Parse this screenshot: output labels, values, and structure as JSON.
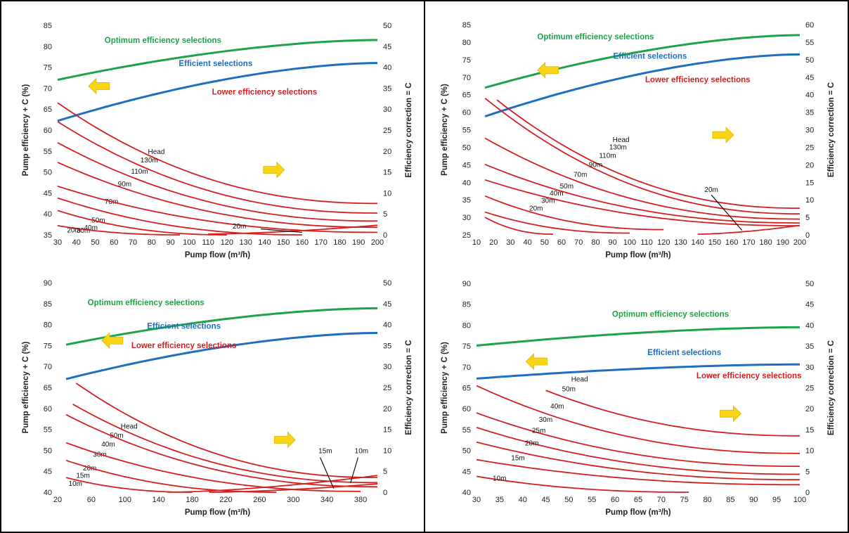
{
  "colors": {
    "optimum": "#1fa34a",
    "efficient": "#1f6fc0",
    "lower": "#d42020",
    "arrow": "#f7d414",
    "text": "#222222"
  },
  "chart_data": [
    {
      "type": "line",
      "panel": "top-left",
      "xlabel": "Pump flow (m³/h)",
      "ylabel": "Pump efficiency + C (%)",
      "y2label": "Efficiency correction = C",
      "xlim": [
        30,
        200
      ],
      "xticks": [
        30,
        40,
        50,
        60,
        70,
        80,
        90,
        100,
        110,
        120,
        130,
        140,
        150,
        160,
        170,
        180,
        190,
        200
      ],
      "ylim": [
        35,
        85
      ],
      "yticks": [
        35,
        40,
        45,
        50,
        55,
        60,
        65,
        70,
        75,
        80,
        85
      ],
      "y2lim": [
        0,
        50
      ],
      "y2ticks": [
        0,
        5,
        10,
        15,
        20,
        25,
        30,
        35,
        40,
        45,
        50
      ],
      "region_labels": {
        "optimum": {
          "text": "Optimum efficiency selections",
          "x": 86,
          "y": 80.8
        },
        "efficient": {
          "text": "Efficient selections",
          "x": 114,
          "y": 75.3
        },
        "lower": {
          "text": "Lower efficiency selections",
          "x": 140,
          "y": 68.5
        }
      },
      "boundaries": {
        "optimum": {
          "x": [
            30,
            200
          ],
          "y": [
            72,
            81.5
          ]
        },
        "efficient": {
          "x": [
            30,
            200
          ],
          "y": [
            62.2,
            76
          ]
        }
      },
      "heads_title": {
        "text": "Head",
        "x": 78,
        "y": 54.3
      },
      "heads": [
        {
          "name": "130m",
          "x": [
            30,
            200
          ],
          "y": [
            66.5,
            42.5
          ],
          "label_x": 74,
          "label_y": 52.3
        },
        {
          "name": "110m",
          "x": [
            30,
            200
          ],
          "y": [
            62,
            40.2
          ],
          "label_x": 69,
          "label_y": 49.6
        },
        {
          "name": "90m",
          "x": [
            30,
            200
          ],
          "y": [
            57,
            38.3
          ],
          "label_x": 62,
          "label_y": 46.6
        },
        {
          "name": "70m",
          "x": [
            30,
            200
          ],
          "y": [
            52.3,
            36.8
          ],
          "label_x": 55,
          "label_y": 42.4
        },
        {
          "name": "50m",
          "x": [
            30,
            200
          ],
          "y": [
            46.6,
            35.6
          ],
          "label_x": 48,
          "label_y": 37.9
        },
        {
          "name": "40m",
          "x": [
            30,
            160
          ],
          "y": [
            43.8,
            35
          ],
          "label_x": 44,
          "label_y": 36.2
        },
        {
          "name": "30m",
          "x": [
            30,
            120
          ],
          "y": [
            40.8,
            35
          ],
          "label_x": 40,
          "label_y": 35.5
        },
        {
          "name": "20m",
          "x": [
            30,
            95
          ],
          "y": [
            37.2,
            35
          ],
          "label_x": 35,
          "label_y": 35.6
        },
        {
          "name": "20m",
          "x": [
            110,
            200
          ],
          "y": [
            35.2,
            37.3
          ],
          "label_x": 123,
          "label_y": 36.5
        }
      ]
    },
    {
      "type": "line",
      "panel": "top-right",
      "xlabel": "Pump flow (m³/h)",
      "ylabel": "Pump efficiency + C (%)",
      "y2label": "Efficiency correction = C",
      "xlim": [
        10,
        200
      ],
      "xticks": [
        10,
        20,
        30,
        40,
        50,
        60,
        70,
        80,
        90,
        100,
        110,
        120,
        130,
        140,
        150,
        160,
        170,
        180,
        190,
        200
      ],
      "ylim": [
        25,
        85
      ],
      "yticks": [
        25,
        30,
        35,
        40,
        45,
        50,
        55,
        60,
        65,
        70,
        75,
        80,
        85
      ],
      "y2lim": [
        0,
        60
      ],
      "y2ticks": [
        0,
        5,
        10,
        15,
        20,
        25,
        30,
        35,
        40,
        45,
        50,
        55,
        60
      ],
      "region_labels": {
        "optimum": {
          "text": "Optimum efficiency selections",
          "x": 80,
          "y": 80.8
        },
        "efficient": {
          "text": "Efficient selections",
          "x": 112,
          "y": 75.3
        },
        "lower": {
          "text": "Lower efficiency selections",
          "x": 140,
          "y": 68.5
        }
      },
      "boundaries": {
        "optimum": {
          "x": [
            15,
            200
          ],
          "y": [
            67,
            82
          ]
        },
        "efficient": {
          "x": [
            15,
            200
          ],
          "y": [
            58.8,
            76.5
          ]
        }
      },
      "heads_title": {
        "text": "Head",
        "x": 90,
        "y": 51.5
      },
      "heads": [
        {
          "name": "130m",
          "x": [
            22,
            200
          ],
          "y": [
            63.5,
            32.6
          ],
          "label_x": 88,
          "label_y": 49.4
        },
        {
          "name": "110m",
          "x": [
            15,
            200
          ],
          "y": [
            64,
            31
          ],
          "label_x": 82,
          "label_y": 47
        },
        {
          "name": "90m",
          "x": [
            15,
            200
          ],
          "y": [
            52.6,
            29.5
          ],
          "label_x": 76,
          "label_y": 44.4
        },
        {
          "name": "70m",
          "x": [
            15,
            200
          ],
          "y": [
            45.1,
            28.4
          ],
          "label_x": 67,
          "label_y": 41.6
        },
        {
          "name": "50m",
          "x": [
            15,
            200
          ],
          "y": [
            40.7,
            27.6
          ],
          "label_x": 59,
          "label_y": 38.2
        },
        {
          "name": "40m",
          "x": [
            15,
            120
          ],
          "y": [
            36.1,
            26.5
          ],
          "label_x": 53,
          "label_y": 36.2
        },
        {
          "name": "30m",
          "x": [
            15,
            100
          ],
          "y": [
            31.5,
            25.5
          ],
          "label_x": 48,
          "label_y": 34.1
        },
        {
          "name": "20m",
          "x": [
            15,
            55
          ],
          "y": [
            30,
            25.2
          ],
          "label_x": 41,
          "label_y": 31.9
        },
        {
          "name": "20m",
          "x": [
            140,
            200
          ],
          "y": [
            25.2,
            27.7
          ],
          "label_x": 144,
          "label_y": 37.2
        }
      ]
    },
    {
      "type": "line",
      "panel": "bottom-left",
      "xlabel": "Pump flow (m³/h)",
      "ylabel": "Pump efficiency + C (%)",
      "y2label": "Efficiency correction = C",
      "xlim": [
        20,
        400
      ],
      "xticks": [
        20,
        60,
        100,
        140,
        180,
        220,
        260,
        300,
        340,
        380
      ],
      "ylim": [
        40,
        90
      ],
      "yticks": [
        40,
        45,
        50,
        55,
        60,
        65,
        70,
        75,
        80,
        85,
        90
      ],
      "y2lim": [
        0,
        50
      ],
      "y2ticks": [
        0,
        5,
        10,
        15,
        20,
        25,
        30,
        35,
        40,
        45,
        50
      ],
      "region_labels": {
        "optimum": {
          "text": "Optimum efficiency selections",
          "x": 125,
          "y": 84.6
        },
        "efficient": {
          "text": "Efficient selections",
          "x": 170,
          "y": 79
        },
        "lower": {
          "text": "Lower efficiency selections",
          "x": 170,
          "y": 74.4
        }
      },
      "boundaries": {
        "optimum": {
          "x": [
            30,
            400
          ],
          "y": [
            75.2,
            83.9
          ]
        },
        "efficient": {
          "x": [
            30,
            400
          ],
          "y": [
            67,
            78
          ]
        }
      },
      "heads_title": {
        "text": "Head",
        "x": 95,
        "y": 55.2
      },
      "heads": [
        {
          "name": "50m",
          "x": [
            42,
            400
          ],
          "y": [
            66,
            43.5
          ],
          "label_x": 82,
          "label_y": 53
        },
        {
          "name": "40m",
          "x": [
            38,
            400
          ],
          "y": [
            61,
            42.3
          ],
          "label_x": 72,
          "label_y": 50.9
        },
        {
          "name": "30m",
          "x": [
            30,
            400
          ],
          "y": [
            58.5,
            41.3
          ],
          "label_x": 62,
          "label_y": 48.5
        },
        {
          "name": "20m",
          "x": [
            30,
            380
          ],
          "y": [
            51.8,
            40.2
          ],
          "label_x": 50,
          "label_y": 45.2
        },
        {
          "name": "15m",
          "x": [
            30,
            280
          ],
          "y": [
            47.6,
            40
          ],
          "label_x": 42,
          "label_y": 43.4
        },
        {
          "name": "10m",
          "x": [
            30,
            180
          ],
          "y": [
            43.5,
            40
          ],
          "label_x": 33,
          "label_y": 41.5
        },
        {
          "name": "15m",
          "x": [
            150,
            400
          ],
          "y": [
            40,
            44
          ],
          "label_x": 330,
          "label_y": 49.3
        },
        {
          "name": "10m",
          "x": [
            200,
            400
          ],
          "y": [
            40,
            42
          ],
          "label_x": 373,
          "label_y": 49.3
        }
      ]
    },
    {
      "type": "line",
      "panel": "bottom-right",
      "xlabel": "Pump flow (m³/h)",
      "ylabel": "Pump efficiency + C (%)",
      "y2label": "Efficiency correction = C",
      "xlim": [
        30,
        100
      ],
      "xticks": [
        30,
        35,
        40,
        45,
        50,
        55,
        60,
        65,
        70,
        75,
        80,
        85,
        90,
        95,
        100
      ],
      "ylim": [
        40,
        90
      ],
      "yticks": [
        40,
        45,
        50,
        55,
        60,
        65,
        70,
        75,
        80,
        85,
        90
      ],
      "y2lim": [
        0,
        50
      ],
      "y2ticks": [
        0,
        5,
        10,
        15,
        20,
        25,
        30,
        35,
        40,
        45,
        50
      ],
      "region_labels": {
        "optimum": {
          "text": "Optimum efficiency selections",
          "x": 72,
          "y": 82
        },
        "efficient": {
          "text": "Efficient selections",
          "x": 75,
          "y": 72.8
        },
        "lower": {
          "text": "Lower efficiency selections",
          "x": 89,
          "y": 67.3
        }
      },
      "boundaries": {
        "optimum": {
          "x": [
            30,
            100
          ],
          "y": [
            75.1,
            79.5
          ]
        },
        "efficient": {
          "x": [
            30,
            100
          ],
          "y": [
            67.2,
            70.6
          ]
        }
      },
      "heads_title": {
        "text": "Head",
        "x": 50.5,
        "y": 66.5
      },
      "heads": [
        {
          "name": "50m",
          "x": [
            45,
            100
          ],
          "y": [
            64.4,
            53.5
          ],
          "label_x": 48.5,
          "label_y": 64.2
        },
        {
          "name": "40m",
          "x": [
            30,
            100
          ],
          "y": [
            65.5,
            49.3
          ],
          "label_x": 46,
          "label_y": 60
        },
        {
          "name": "30m",
          "x": [
            30,
            100
          ],
          "y": [
            59,
            46.2
          ],
          "label_x": 43.5,
          "label_y": 56.8
        },
        {
          "name": "25m",
          "x": [
            30,
            100
          ],
          "y": [
            55.5,
            44.3
          ],
          "label_x": 42,
          "label_y": 54.2
        },
        {
          "name": "20m",
          "x": [
            30,
            100
          ],
          "y": [
            52,
            43
          ],
          "label_x": 40.5,
          "label_y": 51.2
        },
        {
          "name": "15m",
          "x": [
            30,
            100
          ],
          "y": [
            47.8,
            41.8
          ],
          "label_x": 37.5,
          "label_y": 47.7
        },
        {
          "name": "10m",
          "x": [
            30,
            76
          ],
          "y": [
            43.8,
            40
          ],
          "label_x": 33.5,
          "label_y": 42.8
        }
      ]
    }
  ]
}
